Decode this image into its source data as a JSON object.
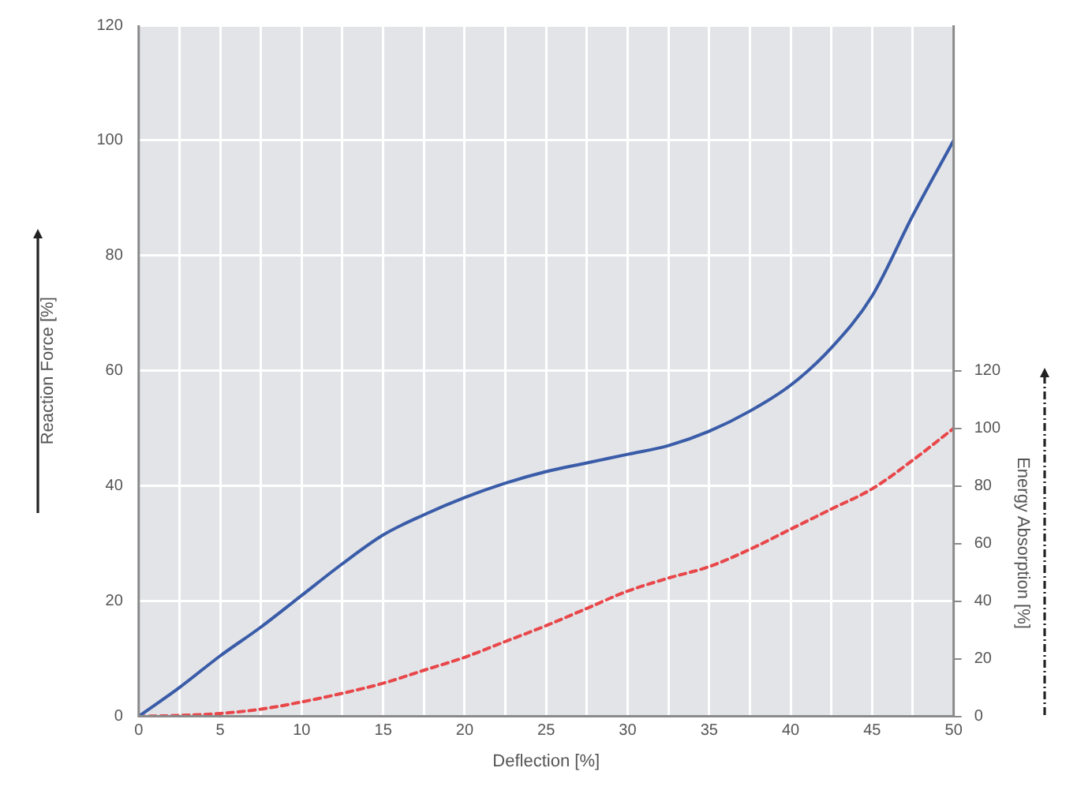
{
  "chart_data": {
    "type": "line",
    "xlabel": "Deflection [%]",
    "ylabel": "Reaction Force [%]",
    "y2label": "Energy Absorption [%]",
    "x": [
      0,
      2.5,
      5,
      7.5,
      10,
      12.5,
      15,
      17.5,
      20,
      22.5,
      25,
      27.5,
      30,
      32.5,
      35,
      37.5,
      40,
      42.5,
      45,
      47.5,
      50
    ],
    "series": [
      {
        "color": "#3a5ca8",
        "line_style": "solid",
        "values": [
          0,
          5,
          10.5,
          15.5,
          21,
          26.5,
          31.5,
          35,
          38,
          40.5,
          42.5,
          44,
          45.5,
          47,
          49.5,
          53,
          57.5,
          64,
          73,
          87,
          100
        ]
      },
      {
        "color": "#e8474a",
        "line_style": "dashed",
        "axis": "y2",
        "values": [
          0,
          0.3,
          1,
          2.5,
          5,
          8,
          11.5,
          16,
          20.5,
          26,
          31.5,
          37.5,
          43.5,
          48,
          52,
          58,
          65,
          72,
          79,
          89,
          100
        ]
      }
    ],
    "xlim": [
      0,
      50
    ],
    "xticks": [
      0,
      {
        "value": 2.5,
        "label": null
      },
      5,
      {
        "value": 7.5,
        "label": null
      },
      10,
      {
        "value": 12.5,
        "label": null
      },
      15,
      {
        "value": 17.5,
        "label": null
      },
      20,
      {
        "value": 22.5,
        "label": null
      },
      25,
      {
        "value": 27.5,
        "label": null
      },
      30,
      {
        "value": 32.5,
        "label": null
      },
      35,
      {
        "value": 37.5,
        "label": null
      },
      40,
      {
        "value": 42.5,
        "label": null
      },
      45,
      {
        "value": 47.5,
        "label": null
      },
      50
    ],
    "ylim": [
      0,
      120
    ],
    "yticks": [
      0,
      20,
      40,
      60,
      80,
      100,
      120
    ],
    "y2lim": [
      0,
      240
    ],
    "y2ticks": [
      0,
      20,
      40,
      60,
      80,
      100,
      120
    ],
    "grid": true,
    "legend": false,
    "marker": "none"
  }
}
